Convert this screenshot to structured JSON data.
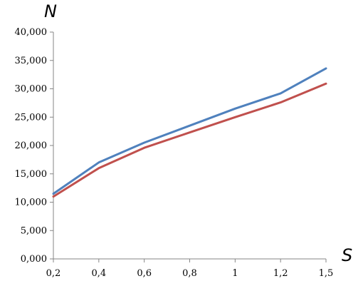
{
  "chart_data": {
    "type": "line",
    "title": "",
    "xlabel": "S",
    "ylabel": "N",
    "x": [
      0.2,
      0.4,
      0.6,
      0.8,
      1,
      1.2,
      1.5
    ],
    "x_tick_labels": [
      "0,2",
      "0,4",
      "0,6",
      "0,8",
      "1",
      "1,2",
      "1,5"
    ],
    "ylim": [
      0,
      40000
    ],
    "y_ticks": [
      0,
      5000,
      10000,
      15000,
      20000,
      25000,
      30000,
      35000,
      40000
    ],
    "y_tick_labels": [
      "0,000",
      "5,000",
      "10,000",
      "15,000",
      "20,000",
      "25,000",
      "30,000",
      "35,000",
      "40,000"
    ],
    "grid": false,
    "legend": "none",
    "series": [
      {
        "color": "#4f81bd",
        "values": [
          11500,
          17000,
          20500,
          23500,
          26500,
          29200,
          33600
        ]
      },
      {
        "color": "#c0504d",
        "values": [
          11000,
          16000,
          19600,
          22300,
          25000,
          27600,
          30900
        ]
      }
    ]
  }
}
